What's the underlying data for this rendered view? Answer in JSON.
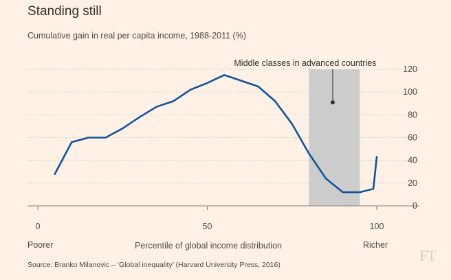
{
  "title": "Standing still",
  "subtitle": "Cumulative gain in real per capita income, 1988-2011 (%)",
  "x_left_label": "Poorer",
  "x_right_label": "Richer",
  "source": "Source: Branko Milanovic – ‘Global inequality’ (Harvard University Press, 2016)",
  "logo_text": "FT",
  "chart_data": {
    "type": "line",
    "title": "Standing still",
    "subtitle": "Cumulative gain in real per capita income, 1988-2011 (%)",
    "xlabel": "Percentile of global income distribution",
    "ylabel": "",
    "xlim": [
      0,
      100
    ],
    "ylim": [
      0,
      120
    ],
    "x_ticks": [
      0,
      50,
      100
    ],
    "y_ticks": [
      0,
      20,
      40,
      60,
      80,
      100,
      120
    ],
    "grid": true,
    "y_axis_side": "right",
    "line_color": "#0f5499",
    "series": [
      {
        "x": [
          5,
          10,
          15,
          20,
          25,
          30,
          35,
          40,
          45,
          50,
          55,
          60,
          65,
          70,
          75,
          80,
          85,
          90,
          95,
          99,
          100
        ],
        "values": [
          28,
          56,
          60,
          60,
          68,
          78,
          87,
          92,
          102,
          108,
          115,
          110,
          105,
          92,
          72,
          46,
          24,
          12,
          12,
          15,
          43
        ]
      }
    ],
    "highlight": {
      "x_range": [
        80,
        95
      ],
      "color": "#cccccc",
      "annotation": "Middle classes in advanced countries",
      "marker": [
        87,
        91
      ]
    }
  }
}
